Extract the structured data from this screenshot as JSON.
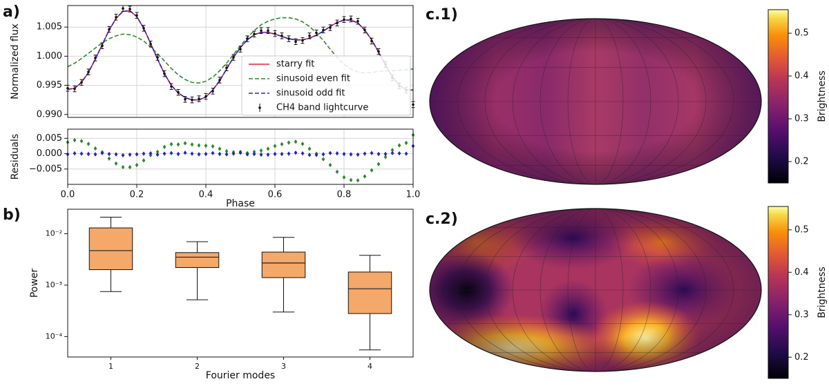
{
  "chart_data": [
    {
      "type": "line",
      "panel_label": "a)",
      "ylabel": "Normalized flux",
      "xlim": [
        0,
        1
      ],
      "ylim": [
        0.9895,
        1.0087
      ],
      "yticks": [
        {
          "value": 0.99,
          "label": "0.990"
        },
        {
          "value": 0.995,
          "label": "0.995"
        },
        {
          "value": 1,
          "label": "1.000"
        },
        {
          "value": 1.005,
          "label": "1.005"
        }
      ],
      "grid": true,
      "legend": "lower right",
      "x": [
        0,
        0.02,
        0.04,
        0.06,
        0.08,
        0.1,
        0.12,
        0.14,
        0.16,
        0.18,
        0.2,
        0.22,
        0.24,
        0.26,
        0.28,
        0.3,
        0.32,
        0.34,
        0.36,
        0.38,
        0.4,
        0.42,
        0.44,
        0.46,
        0.48,
        0.5,
        0.52,
        0.54,
        0.56,
        0.58,
        0.6,
        0.62,
        0.64,
        0.66,
        0.68,
        0.7,
        0.72,
        0.74,
        0.76,
        0.78,
        0.8,
        0.82,
        0.84,
        0.86,
        0.88,
        0.9,
        0.92,
        0.94,
        0.96,
        0.98,
        1
      ],
      "series": [
        {
          "name": "starry fit",
          "color": "#e8202a",
          "dash": false,
          "values": [
            0.9943,
            0.9945,
            0.9955,
            0.9972,
            0.9995,
            1.002,
            1.0045,
            1.0065,
            1.0077,
            1.0078,
            1.0068,
            1.0048,
            1.0022,
            0.9995,
            0.997,
            0.995,
            0.9937,
            0.9929,
            0.9925,
            0.9925,
            0.993,
            0.9942,
            0.9958,
            0.9978,
            0.9998,
            1.0015,
            1.0028,
            1.0037,
            1.0041,
            1.0041,
            1.0038,
            1.0034,
            1.003,
            1.0028,
            1.0028,
            1.0031,
            1.0036,
            1.0043,
            1.0051,
            1.0058,
            1.0062,
            1.0062,
            1.0057,
            1.0045,
            1.0028,
            1.0007,
            0.9985,
            0.9965,
            0.995,
            0.9942,
            0.9942
          ]
        },
        {
          "name": "sinusoid even fit",
          "color": "#2a8c2a",
          "dash": true,
          "values": [
            0.9982,
            0.9988,
            0.9996,
            1.0005,
            1.0014,
            1.0023,
            1.003,
            1.0035,
            1.0038,
            1.0037,
            1.0033,
            1.0026,
            1.0016,
            1.0004,
            0.9992,
            0.9979,
            0.9968,
            0.996,
            0.9955,
            0.9954,
            0.9957,
            0.9964,
            0.9975,
            0.9988,
            1.0003,
            1.0018,
            1.0032,
            1.0044,
            1.0054,
            1.006,
            1.0064,
            1.0066,
            1.0066,
            1.0064,
            1.0059,
            1.0051,
            1.004,
            1.0027,
            1.0012,
            0.9998,
            0.9986,
            0.9978,
            0.9973,
            0.9971,
            0.9972,
            0.9974,
            0.9975,
            0.9975,
            0.9976,
            0.9977,
            0.9978
          ]
        },
        {
          "name": "sinusoid odd fit",
          "color": "#2424c8",
          "dash": true,
          "values": [
            0.9943,
            0.9945,
            0.9955,
            0.9972,
            0.9995,
            1.002,
            1.0045,
            1.0065,
            1.0077,
            1.0078,
            1.0068,
            1.0048,
            1.0022,
            0.9995,
            0.997,
            0.995,
            0.9937,
            0.9929,
            0.9925,
            0.9925,
            0.993,
            0.9942,
            0.9958,
            0.9978,
            0.9998,
            1.0015,
            1.0028,
            1.0037,
            1.0041,
            1.0041,
            1.0038,
            1.0034,
            1.003,
            1.0028,
            1.0028,
            1.0031,
            1.0036,
            1.0043,
            1.0051,
            1.0058,
            1.0062,
            1.0062,
            1.0057,
            1.0045,
            1.0028,
            1.0007,
            0.9985,
            0.9965,
            0.995,
            0.9942,
            0.9942
          ]
        },
        {
          "name": "CH4 band lightcurve",
          "color": "#111111",
          "values": [
            0.9945,
            0.9944,
            0.9955,
            0.9973,
            0.9997,
            1.0018,
            1.0046,
            1.0067,
            1.0082,
            1.0081,
            1.007,
            1.0048,
            1.0021,
            0.9998,
            0.997,
            0.9948,
            0.9938,
            0.9926,
            0.9925,
            0.9927,
            0.9931,
            0.994,
            0.9959,
            0.998,
            0.9998,
            1.0012,
            1.003,
            1.0038,
            1.0044,
            1.0044,
            1.0039,
            1.0035,
            1.003,
            1.0025,
            1.0027,
            1.0035,
            1.004,
            1.0045,
            1.0049,
            1.0057,
            1.0063,
            1.0064,
            1.006,
            1.0045,
            1.0026,
            1.0008,
            0.9986,
            0.9963,
            0.9949,
            0.9942,
            0.9917
          ],
          "errors": [
            0.0005,
            0.0005,
            0.0005,
            0.0005,
            0.0005,
            0.0005,
            0.0005,
            0.0005,
            0.0005,
            0.0005,
            0.0005,
            0.0005,
            0.0005,
            0.0005,
            0.0005,
            0.0005,
            0.0005,
            0.0005,
            0.0005,
            0.0005,
            0.0005,
            0.0005,
            0.0005,
            0.0005,
            0.0005,
            0.0005,
            0.0005,
            0.0005,
            0.0005,
            0.0005,
            0.0005,
            0.0005,
            0.0005,
            0.0005,
            0.0005,
            0.0005,
            0.0005,
            0.0005,
            0.0005,
            0.0005,
            0.0005,
            0.0005,
            0.0005,
            0.0005,
            0.0005,
            0.0005,
            0.0005,
            0.0005,
            0.0005,
            0.0005,
            0.0005
          ]
        }
      ]
    },
    {
      "type": "scatter",
      "ylabel": "Residuals",
      "xlabel": "Phase",
      "xlim": [
        0,
        1
      ],
      "ylim": [
        -0.01,
        0.008
      ],
      "xticks": [
        {
          "value": 0,
          "label": "0.0"
        },
        0.2,
        0.4,
        0.6,
        0.8,
        {
          "value": 1,
          "label": "1.0"
        }
      ],
      "yticks": [
        {
          "value": -0.005,
          "label": "−0.005"
        },
        {
          "value": 0,
          "label": "0.000"
        },
        {
          "value": 0.005,
          "label": "0.005"
        }
      ],
      "grid": true,
      "x": [
        0,
        0.02,
        0.04,
        0.06,
        0.08,
        0.1,
        0.12,
        0.14,
        0.16,
        0.18,
        0.2,
        0.22,
        0.24,
        0.26,
        0.28,
        0.3,
        0.32,
        0.34,
        0.36,
        0.38,
        0.4,
        0.42,
        0.44,
        0.46,
        0.48,
        0.5,
        0.52,
        0.54,
        0.56,
        0.58,
        0.6,
        0.62,
        0.64,
        0.66,
        0.68,
        0.7,
        0.72,
        0.74,
        0.76,
        0.78,
        0.8,
        0.82,
        0.84,
        0.86,
        0.88,
        0.9,
        0.92,
        0.94,
        0.96,
        0.98,
        1
      ],
      "series": [
        {
          "color": "#2a8c2a",
          "values": [
            0.0037,
            0.0044,
            0.0041,
            0.0032,
            0.0017,
            0.0005,
            -0.0016,
            -0.0032,
            -0.0044,
            -0.0044,
            -0.0037,
            -0.0022,
            -0.0005,
            0.0006,
            0.0022,
            0.0031,
            0.003,
            0.0034,
            0.003,
            0.0027,
            0.0026,
            0.0024,
            0.0016,
            0.0008,
            0.0005,
            0.0006,
            0.0002,
            0.0006,
            0.001,
            0.0016,
            0.0025,
            0.0031,
            0.0036,
            0.0039,
            0.0032,
            0.0016,
            0,
            -0.0018,
            -0.0037,
            -0.0059,
            -0.0077,
            -0.0086,
            -0.0087,
            -0.0074,
            -0.0054,
            -0.0034,
            -0.0011,
            0.0012,
            0.0027,
            0.0035,
            0.0061
          ]
        },
        {
          "color": "#2424c8",
          "values": [
            -0.0002,
            0.0001,
            0,
            -0.0001,
            -0.0002,
            0.0002,
            -0.0001,
            -0.0002,
            -0.0005,
            -0.0003,
            -0.0002,
            0,
            0.0001,
            -0.0003,
            0,
            0.0002,
            -0.0001,
            0.0003,
            0,
            -0.0002,
            -0.0001,
            0.0002,
            -0.0001,
            -0.0002,
            0,
            0.0003,
            -0.0002,
            -0.0001,
            -0.0003,
            -0.0003,
            -0.0001,
            -0.0001,
            0,
            0.0003,
            0.0001,
            -0.0004,
            -0.0004,
            -0.0002,
            0.0002,
            0.0001,
            -0.0001,
            -0.0002,
            -0.0003,
            0,
            0.0002,
            -0.0001,
            -0.0001,
            0.0002,
            0.0001,
            0,
            0.0025
          ]
        }
      ]
    },
    {
      "type": "box",
      "panel_label": "b)",
      "ylabel": "Power",
      "xlabel": "Fourier modes",
      "log_scale": true,
      "ylim": [
        4e-05,
        0.03
      ],
      "color": "#f4a86a",
      "yticks": [
        {
          "value": 0.0001,
          "label": "10⁻⁴"
        },
        {
          "value": 0.001,
          "label": "10⁻³"
        },
        {
          "value": 0.01,
          "label": "10⁻²"
        }
      ],
      "categories": [
        "1",
        "2",
        "3",
        "4"
      ],
      "low": [
        0.00075,
        0.00052,
        0.0003,
        5.5e-05
      ],
      "q1": [
        0.002,
        0.0022,
        0.0014,
        0.00028
      ],
      "median": [
        0.0047,
        0.0035,
        0.0027,
        0.00085
      ],
      "q3": [
        0.013,
        0.0043,
        0.0044,
        0.0018
      ],
      "high": [
        0.021,
        0.007,
        0.0085,
        0.0038
      ]
    },
    {
      "type": "map",
      "panel_label": "c.1)",
      "colorbar_label": "Brightness",
      "clim": [
        0.15,
        0.555
      ],
      "cticks": [
        0.2,
        0.3,
        0.4,
        0.5
      ]
    },
    {
      "type": "map",
      "panel_label": "c.2)",
      "colorbar_label": "Brightness",
      "clim": [
        0.15,
        0.555
      ],
      "cticks": [
        0.2,
        0.3,
        0.4,
        0.5
      ]
    }
  ]
}
